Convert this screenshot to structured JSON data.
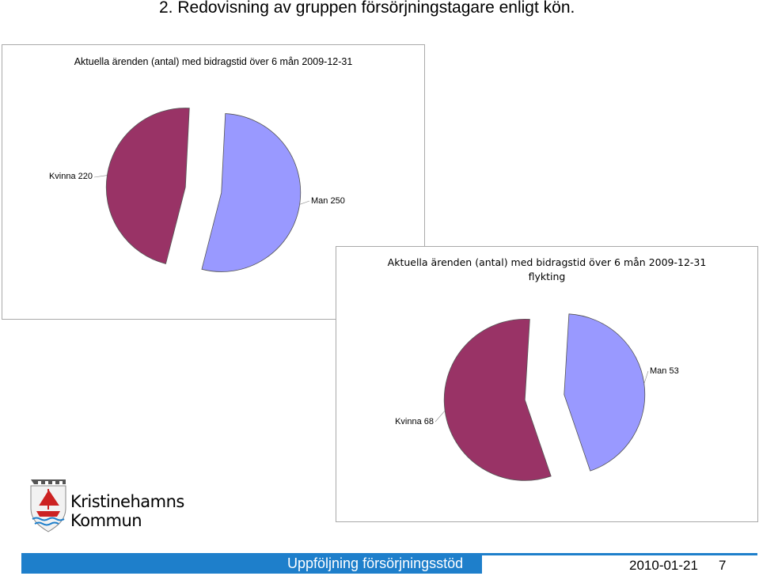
{
  "slide": {
    "title": "2. Redovisning av gruppen försörjningstagare enligt kön."
  },
  "chart_data": [
    {
      "type": "pie",
      "title": "Aktuella ärenden (antal) med bidragstid över 6 mån 2009-12-31",
      "categories": [
        "Kvinna",
        "Man"
      ],
      "values": [
        220,
        250
      ],
      "labels": [
        "Kvinna 220",
        "Man 250"
      ],
      "colors": [
        "#993366",
        "#9999ff"
      ]
    },
    {
      "type": "pie",
      "title": "Aktuella ärenden (antal) med bidragstid över 6 mån 2009-12-31",
      "subtitle": "flykting",
      "categories": [
        "Man",
        "Kvinna"
      ],
      "values": [
        53,
        68
      ],
      "labels": [
        "Man 53",
        "Kvinna 68"
      ],
      "colors": [
        "#9999ff",
        "#993366"
      ]
    }
  ],
  "logo": {
    "line1": "Kristinehamns",
    "line2": "Kommun"
  },
  "footer": {
    "title": "Uppföljning försörjningsstöd",
    "date": "2010-01-21",
    "page": "7",
    "color": "#1e7fcb"
  }
}
